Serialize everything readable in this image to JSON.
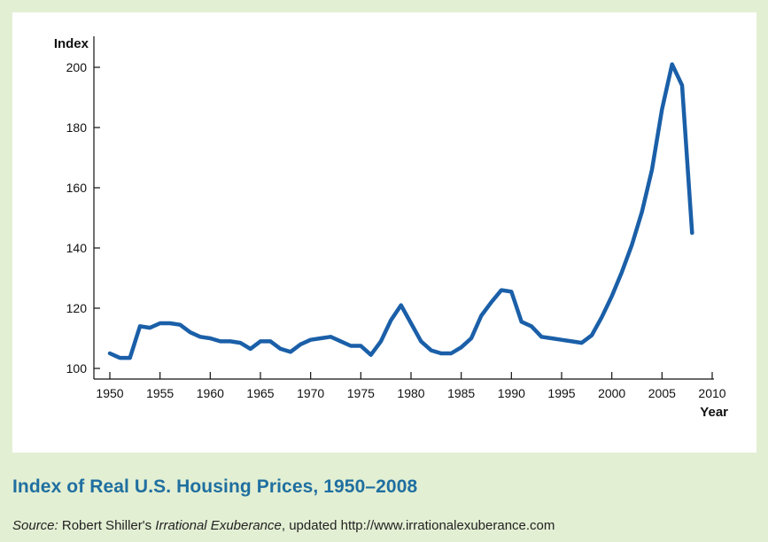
{
  "colors": {
    "background": "#e3efd3",
    "panel": "#ffffff",
    "line": "#1a5fa8",
    "caption": "#1f6fa0"
  },
  "caption": {
    "title": "Index of Real U.S. Housing Prices, 1950–2008",
    "source_label": "Source:",
    "source_pre": " Robert Shiller's ",
    "source_book": "Irrational Exuberance",
    "source_post": ", updated http://www.irrationalexuberance.com"
  },
  "chart_data": {
    "type": "line",
    "title": "Index of Real U.S. Housing Prices, 1950–2008",
    "xlabel": "Year",
    "ylabel": "Index",
    "xlim": [
      1950,
      2010
    ],
    "ylim": [
      100,
      200
    ],
    "x_ticks": [
      1950,
      1955,
      1960,
      1965,
      1970,
      1975,
      1980,
      1985,
      1990,
      1995,
      2000,
      2005,
      2010
    ],
    "y_ticks": [
      100,
      120,
      140,
      160,
      180,
      200
    ],
    "grid": false,
    "legend": "none",
    "series": [
      {
        "x": [
          1950,
          1951,
          1952,
          1953,
          1954,
          1955,
          1956,
          1957,
          1958,
          1959,
          1960,
          1961,
          1962,
          1963,
          1964,
          1965,
          1966,
          1967,
          1968,
          1969,
          1970,
          1971,
          1972,
          1973,
          1974,
          1975,
          1976,
          1977,
          1978,
          1979,
          1980,
          1981,
          1982,
          1983,
          1984,
          1985,
          1986,
          1987,
          1988,
          1989,
          1990,
          1991,
          1992,
          1993,
          1994,
          1995,
          1996,
          1997,
          1998,
          1999,
          2000,
          2001,
          2002,
          2003,
          2004,
          2005,
          2006,
          2007,
          2008
        ],
        "values": [
          105,
          103.5,
          103.5,
          114,
          113.5,
          115,
          115,
          114.5,
          112,
          110.5,
          110,
          109,
          109,
          108.5,
          106.5,
          109,
          109,
          106.5,
          105.5,
          108,
          109.5,
          110,
          110.5,
          109,
          107.5,
          107.5,
          104.5,
          109,
          116,
          121,
          115,
          109,
          106,
          105,
          105,
          107,
          110,
          117.5,
          122,
          126,
          125.5,
          115.5,
          114,
          110.5,
          110,
          109.5,
          109,
          108.5,
          111,
          117,
          124,
          132,
          141,
          152,
          166,
          186,
          201,
          194,
          145
        ]
      }
    ]
  }
}
